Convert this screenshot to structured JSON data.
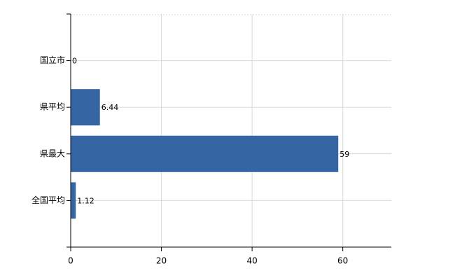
{
  "chart_data": {
    "type": "bar",
    "orientation": "horizontal",
    "categories": [
      "国立市",
      "県平均",
      "県最大",
      "全国平均"
    ],
    "values": [
      0,
      6.44,
      59,
      1.12
    ],
    "color": "#3566a3",
    "xlim": [
      0,
      70.7
    ],
    "xticks": [
      0,
      20,
      40,
      60
    ],
    "grid": true
  }
}
